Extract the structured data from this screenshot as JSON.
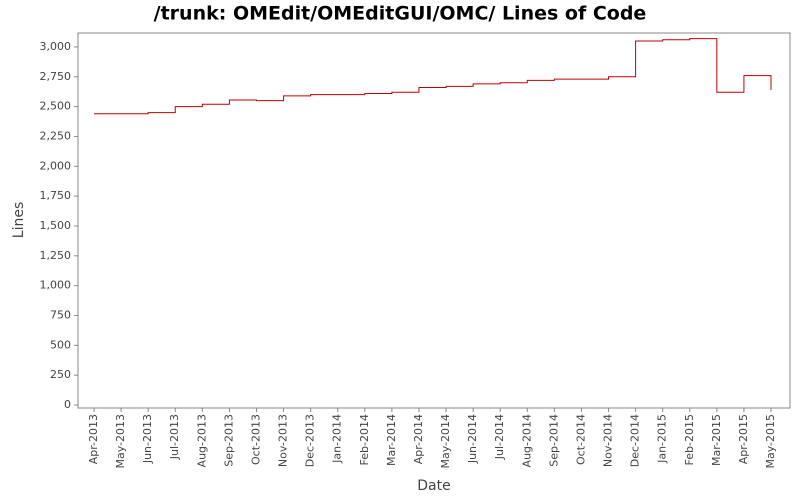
{
  "chart_data": {
    "type": "step-line",
    "title": "/trunk: OMEdit/OMEditGUI/OMC/ Lines of Code",
    "x_label": "Date",
    "y_label": "Lines",
    "x": [
      "2013-04",
      "2013-05",
      "2013-06",
      "2013-07",
      "2013-08",
      "2013-09",
      "2013-10",
      "2013-11",
      "2013-12",
      "2014-01",
      "2014-02",
      "2014-03",
      "2014-04",
      "2014-05",
      "2014-06",
      "2014-07",
      "2014-08",
      "2014-09",
      "2014-10",
      "2014-11",
      "2014-12",
      "2015-01",
      "2015-02",
      "2015-03",
      "2015-04",
      "2015-05"
    ],
    "series": [
      {
        "name": "Lines",
        "color": "#c00000",
        "values": [
          2440,
          2440,
          2450,
          2500,
          2520,
          2555,
          2550,
          2590,
          2600,
          2600,
          2610,
          2620,
          2660,
          2670,
          2690,
          2700,
          2720,
          2730,
          2730,
          2750,
          3050,
          3060,
          3070,
          2620,
          2760,
          2640
        ]
      }
    ],
    "xlim": [
      "2013-04",
      "2015-05"
    ],
    "xticks": [
      {
        "value": "2013-04",
        "label": "Apr-2013"
      },
      {
        "value": "2013-05",
        "label": "May-2013"
      },
      {
        "value": "2013-06",
        "label": "Jun-2013"
      },
      {
        "value": "2013-07",
        "label": "Jul-2013"
      },
      {
        "value": "2013-08",
        "label": "Aug-2013"
      },
      {
        "value": "2013-09",
        "label": "Sep-2013"
      },
      {
        "value": "2013-10",
        "label": "Oct-2013"
      },
      {
        "value": "2013-11",
        "label": "Nov-2013"
      },
      {
        "value": "2013-12",
        "label": "Dec-2013"
      },
      {
        "value": "2014-01",
        "label": "Jan-2014"
      },
      {
        "value": "2014-02",
        "label": "Feb-2014"
      },
      {
        "value": "2014-03",
        "label": "Mar-2014"
      },
      {
        "value": "2014-04",
        "label": "Apr-2014"
      },
      {
        "value": "2014-05",
        "label": "May-2014"
      },
      {
        "value": "2014-06",
        "label": "Jun-2014"
      },
      {
        "value": "2014-07",
        "label": "Jul-2014"
      },
      {
        "value": "2014-08",
        "label": "Aug-2014"
      },
      {
        "value": "2014-09",
        "label": "Sep-2014"
      },
      {
        "value": "2014-10",
        "label": "Oct-2014"
      },
      {
        "value": "2014-11",
        "label": "Nov-2014"
      },
      {
        "value": "2014-12",
        "label": "Dec-2014"
      },
      {
        "value": "2015-01",
        "label": "Jan-2015"
      },
      {
        "value": "2015-02",
        "label": "Feb-2015"
      },
      {
        "value": "2015-03",
        "label": "Mar-2015"
      },
      {
        "value": "2015-04",
        "label": "Apr-2015"
      },
      {
        "value": "2015-05",
        "label": "May-2015"
      }
    ],
    "ylim": [
      0,
      3100
    ],
    "yticks": [
      0,
      250,
      500,
      750,
      {
        "value": 1000,
        "label": "1,000"
      },
      {
        "value": 1250,
        "label": "1,250"
      },
      {
        "value": 1500,
        "label": "1,500"
      },
      {
        "value": 1750,
        "label": "1,750"
      },
      {
        "value": 2000,
        "label": "2,000"
      },
      {
        "value": 2250,
        "label": "2,250"
      },
      {
        "value": 2500,
        "label": "2,500"
      },
      {
        "value": 2750,
        "label": "2,750"
      },
      {
        "value": 3000,
        "label": "3,000"
      }
    ],
    "grid": false
  }
}
